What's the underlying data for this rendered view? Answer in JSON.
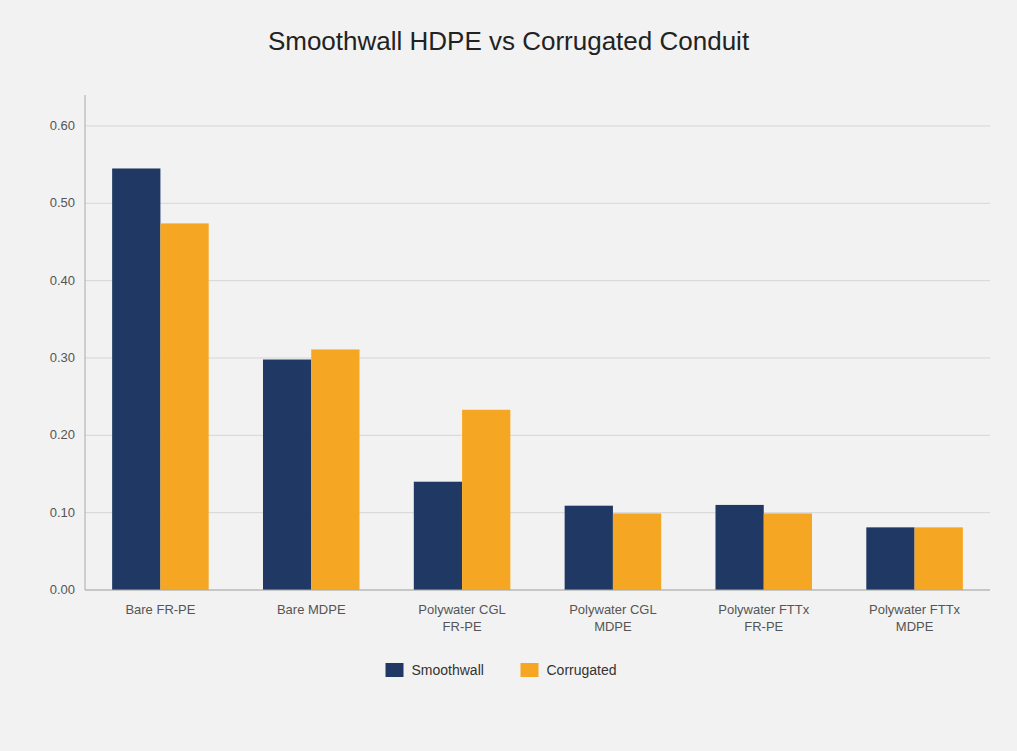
{
  "chart_data": {
    "type": "bar",
    "title": "Smoothwall HDPE vs Corrugated Conduit",
    "categories": [
      "Bare FR-PE",
      "Bare MDPE",
      "Polywater CGL\nFR-PE",
      "Polywater CGL\nMDPE",
      "Polywater FTTx\nFR-PE",
      "Polywater FTTx\nMDPE"
    ],
    "series": [
      {
        "name": "Smoothwall",
        "color": "#1F3864",
        "values": [
          0.545,
          0.298,
          0.14,
          0.109,
          0.11,
          0.081
        ]
      },
      {
        "name": "Corrugated",
        "color": "#F5A623",
        "values": [
          0.474,
          0.311,
          0.233,
          0.099,
          0.099,
          0.081
        ]
      }
    ],
    "ylim": [
      0,
      0.64
    ],
    "yticks": [
      {
        "value": 0.0,
        "label": "0.00"
      },
      {
        "value": 0.1,
        "label": "0.10"
      },
      {
        "value": 0.2,
        "label": "0.20"
      },
      {
        "value": 0.3,
        "label": "0.30"
      },
      {
        "value": 0.4,
        "label": "0.40"
      },
      {
        "value": 0.5,
        "label": "0.50"
      },
      {
        "value": 0.6,
        "label": "0.60"
      }
    ],
    "grid": true,
    "legend": "bottom"
  }
}
